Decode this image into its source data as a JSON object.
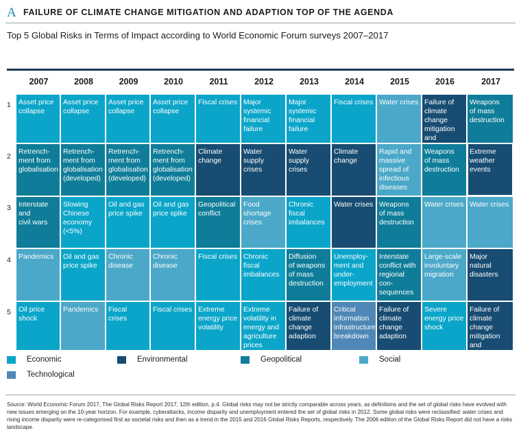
{
  "header": {
    "letter": "A",
    "title": "FAILURE OF CLIMATE CHANGE MITIGATION AND ADAPTION TOP OF THE AGENDA"
  },
  "colors": {
    "Economic": "#0ba5c9",
    "Environmental": "#184c72",
    "Geopolitical": "#0f7d99",
    "Social": "#4ba8c8",
    "Technological": "#4f88b6"
  },
  "chart_data": {
    "type": "table",
    "title": "Top 5 Global Risks in Terms of Impact according to World Economic Forum surveys 2007–2017",
    "years": [
      "2007",
      "2008",
      "2009",
      "2010",
      "2011",
      "2012",
      "2013",
      "2014",
      "2015",
      "2016",
      "2017"
    ],
    "ranks": [
      "1",
      "2",
      "3",
      "4",
      "5"
    ],
    "cells": [
      [
        {
          "text": "Asset price\ncollapse",
          "category": "Economic"
        },
        {
          "text": "Asset price\ncollapse",
          "category": "Economic"
        },
        {
          "text": "Asset price\ncollapse",
          "category": "Economic"
        },
        {
          "text": "Asset price\ncollapse",
          "category": "Economic"
        },
        {
          "text": "Fiscal crises",
          "category": "Economic"
        },
        {
          "text": "Major\nsystemic\nfinancial\nfailure",
          "category": "Economic"
        },
        {
          "text": "Major\nsystemic\nfinancial\nfailure",
          "category": "Economic"
        },
        {
          "text": "Fiscal crises",
          "category": "Economic"
        },
        {
          "text": "Water crises",
          "category": "Social"
        },
        {
          "text": "Failure of\nclimate\nchange\nmitigation\nand adaption",
          "category": "Environmental"
        },
        {
          "text": "Weapons\nof mass\ndestruction",
          "category": "Geopolitical"
        }
      ],
      [
        {
          "text": "Retrench-\nment from\nglobalisation",
          "category": "Geopolitical"
        },
        {
          "text": "Retrench-\nment from\nglobalisation\n(developed)",
          "category": "Geopolitical"
        },
        {
          "text": "Retrench-\nment from\nglobalisation\n(developed)",
          "category": "Geopolitical"
        },
        {
          "text": "Retrench-\nment from\nglobalisation\n(developed)",
          "category": "Geopolitical"
        },
        {
          "text": "Climate\nchange",
          "category": "Environmental"
        },
        {
          "text": "Water supply\ncrises",
          "category": "Environmental"
        },
        {
          "text": "Water supply\ncrises",
          "category": "Environmental"
        },
        {
          "text": "Climate\nchange",
          "category": "Environmental"
        },
        {
          "text": "Rapid and\nmassive\nspread of\ninfectious\ndiseases",
          "category": "Social"
        },
        {
          "text": "Weapons\nof mass\ndestruction",
          "category": "Geopolitical"
        },
        {
          "text": "Extreme\nweather\nevents",
          "category": "Environmental"
        }
      ],
      [
        {
          "text": "Interstate and\ncivil wars",
          "category": "Geopolitical"
        },
        {
          "text": "Slowing\nChinese\neconomy\n(<5%)",
          "category": "Economic"
        },
        {
          "text": "Oil and gas\nprice spike",
          "category": "Economic"
        },
        {
          "text": "Oil and gas\nprice spike",
          "category": "Economic"
        },
        {
          "text": "Geopolitical\nconflict",
          "category": "Geopolitical"
        },
        {
          "text": "Food\nshortage\ncrises",
          "category": "Social"
        },
        {
          "text": "Chronic fiscal\nimbalances",
          "category": "Economic"
        },
        {
          "text": "Water crises",
          "category": "Environmental"
        },
        {
          "text": "Weapons\nof mass\ndestruction",
          "category": "Geopolitical"
        },
        {
          "text": "Water crises",
          "category": "Social"
        },
        {
          "text": "Water crises",
          "category": "Social"
        }
      ],
      [
        {
          "text": "Pandemics",
          "category": "Social"
        },
        {
          "text": "Oil and gas\nprice spike",
          "category": "Economic"
        },
        {
          "text": "Chronic\ndisease",
          "category": "Social"
        },
        {
          "text": "Chronic\ndisease",
          "category": "Social"
        },
        {
          "text": "Fiscal crises",
          "category": "Economic"
        },
        {
          "text": "Chronic fiscal\nimbalances",
          "category": "Economic"
        },
        {
          "text": "Diffusion\nof weapons\nof mass\ndestruction",
          "category": "Geopolitical"
        },
        {
          "text": "Unemploy-\nment and\nunder-\nemployment",
          "category": "Economic"
        },
        {
          "text": "Interstate\nconflict with\nregional con-\nsequences",
          "category": "Geopolitical"
        },
        {
          "text": "Large-scale\ninvoluntary\nmigration",
          "category": "Social"
        },
        {
          "text": "Major natural\ndisasters",
          "category": "Environmental"
        }
      ],
      [
        {
          "text": "Oil price\nshock",
          "category": "Economic"
        },
        {
          "text": "Pandemics",
          "category": "Social"
        },
        {
          "text": "Fiscal crises",
          "category": "Economic"
        },
        {
          "text": "Fiscal crises",
          "category": "Economic"
        },
        {
          "text": "Extreme\nenergy price\nvolatility",
          "category": "Economic"
        },
        {
          "text": "Extreme\nvolatility in\nenergy and\nagriculture\nprices",
          "category": "Economic"
        },
        {
          "text": "Failure of\nclimate\nchange\nadaption",
          "category": "Environmental"
        },
        {
          "text": "Critical\ninformation\ninfrastructure\nbreakdown",
          "category": "Technological"
        },
        {
          "text": "Failure of\nclimate\nchange\nadaption",
          "category": "Environmental"
        },
        {
          "text": "Severe\nenergy price\nshock",
          "category": "Economic"
        },
        {
          "text": "Failure of\nclimate\nchange\nmitigation\nand adaption",
          "category": "Environmental"
        }
      ]
    ],
    "legend": [
      "Economic",
      "Environmental",
      "Geopolitical",
      "Social",
      "Technological"
    ]
  },
  "source_note": "Source: World Economic Forum 2017, The Global Risks Report 2017, 12th edition, p.4. Global risks may not be strictly comparable across years, as definitions and the set of global risks have evolved with new issues emerging on the 10-year horizon. For example, cyberattacks, income disparity and unemployment entered the set of global risks in 2012. Some global risks were reclassified: water crises and rising income disparity were re-categorised first as societal risks and then as a trend in the 2015 and 2016 Global Risks Reports, respectively. The 2006 edition of the Global Risks Report did not have a risks landscape."
}
